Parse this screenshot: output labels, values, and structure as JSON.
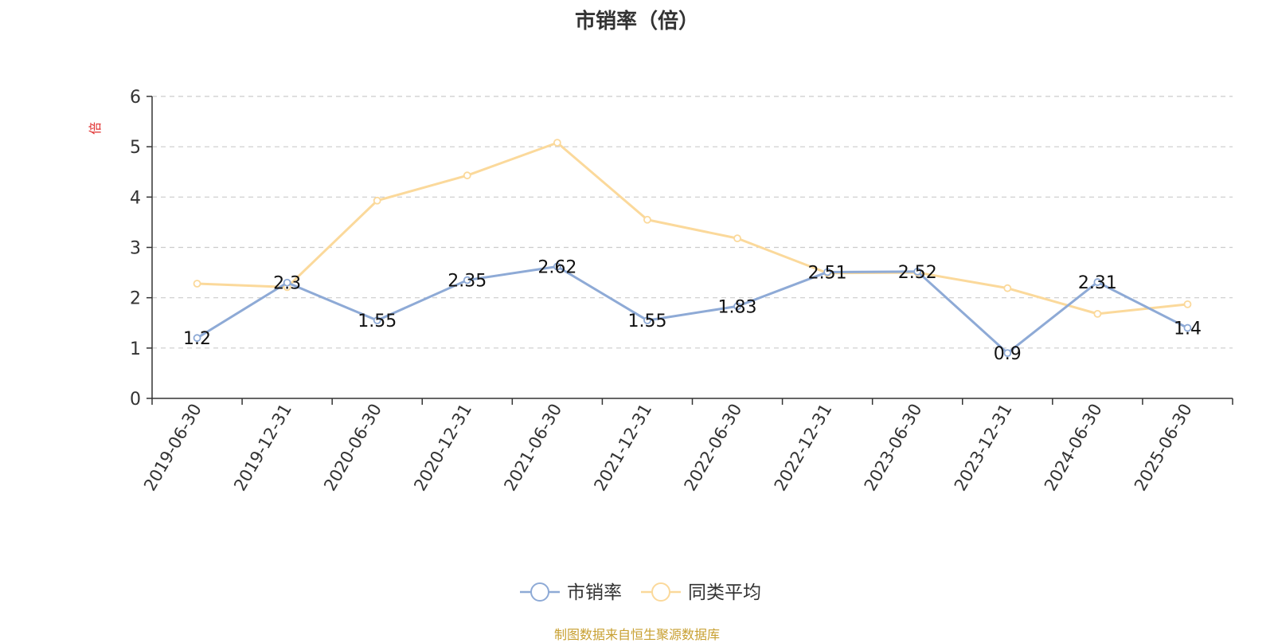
{
  "title": "市销率（倍）",
  "source": "制图数据来自恒生聚源数据库",
  "chart_data": {
    "type": "line",
    "title": "市销率（倍）",
    "ylabel": "倍",
    "xlabel": "",
    "ylim": [
      0,
      6
    ],
    "yticks": [
      "0",
      "1",
      "2",
      "3",
      "4",
      "5",
      "6"
    ],
    "grid": true,
    "legend_position": "bottom-center",
    "categories": [
      "2019-06-30",
      "2019-12-31",
      "2020-06-30",
      "2020-12-31",
      "2021-06-30",
      "2021-12-31",
      "2022-06-30",
      "2022-12-31",
      "2023-06-30",
      "2023-12-31",
      "2024-06-30",
      "2025-06-30"
    ],
    "series": [
      {
        "name": "市销率",
        "color": "#8eaad6",
        "values": [
          1.2,
          2.3,
          1.55,
          2.35,
          2.62,
          1.55,
          1.83,
          2.51,
          2.52,
          0.9,
          2.31,
          1.4
        ],
        "labels": [
          "1.2",
          "2.3",
          "1.55",
          "2.35",
          "2.62",
          "1.55",
          "1.83",
          "2.51",
          "2.52",
          "0.9",
          "2.31",
          "1.4"
        ]
      },
      {
        "name": "同类平均",
        "color": "#fbd99b",
        "values": [
          2.28,
          2.21,
          3.93,
          4.43,
          5.08,
          3.55,
          3.18,
          2.49,
          2.5,
          2.19,
          1.68,
          1.87
        ]
      }
    ]
  }
}
